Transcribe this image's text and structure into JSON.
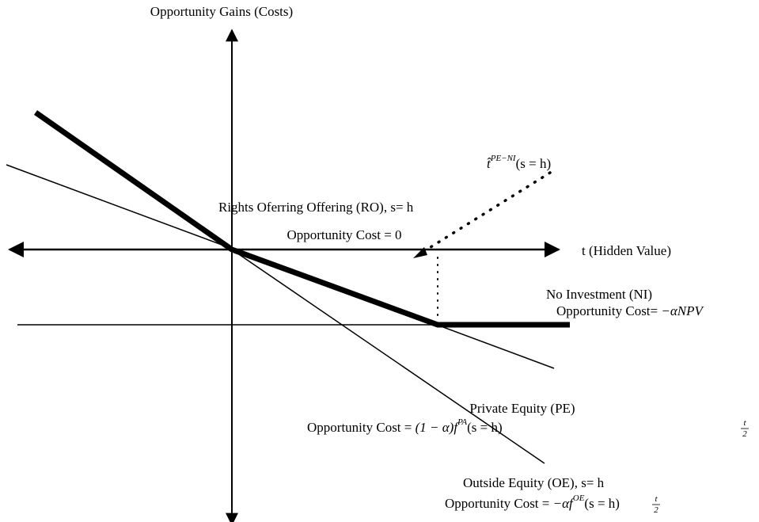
{
  "axes": {
    "y_label": "Opportunity Gains (Costs)",
    "x_label": "t (Hidden Value)"
  },
  "threshold": {
    "base": "t̂",
    "sup": "PE−NI",
    "rest": "(s = h)"
  },
  "ro": {
    "name": "Rights Oferring Offering (RO), s= h",
    "cost": "Opportunity Cost = 0"
  },
  "ni": {
    "name": "No Investment (NI)",
    "cost_text": "Opportunity Cost= ",
    "cost_math": "−αNPV"
  },
  "pe": {
    "name": "Private Equity (PE)",
    "cost_text": "Opportunity Cost = ",
    "cost_math": "(1 − α)f",
    "sup": "PA",
    "rest": "(s = h)",
    "frac_num": "t",
    "frac_den": "2"
  },
  "oe": {
    "name": "Outside Equity (OE), s= h",
    "cost_text": "Opportunity Cost = ",
    "cost_math": "−αf",
    "sup": "OE",
    "rest": "(s = h)",
    "frac_num": "t",
    "frac_den": "2"
  }
}
